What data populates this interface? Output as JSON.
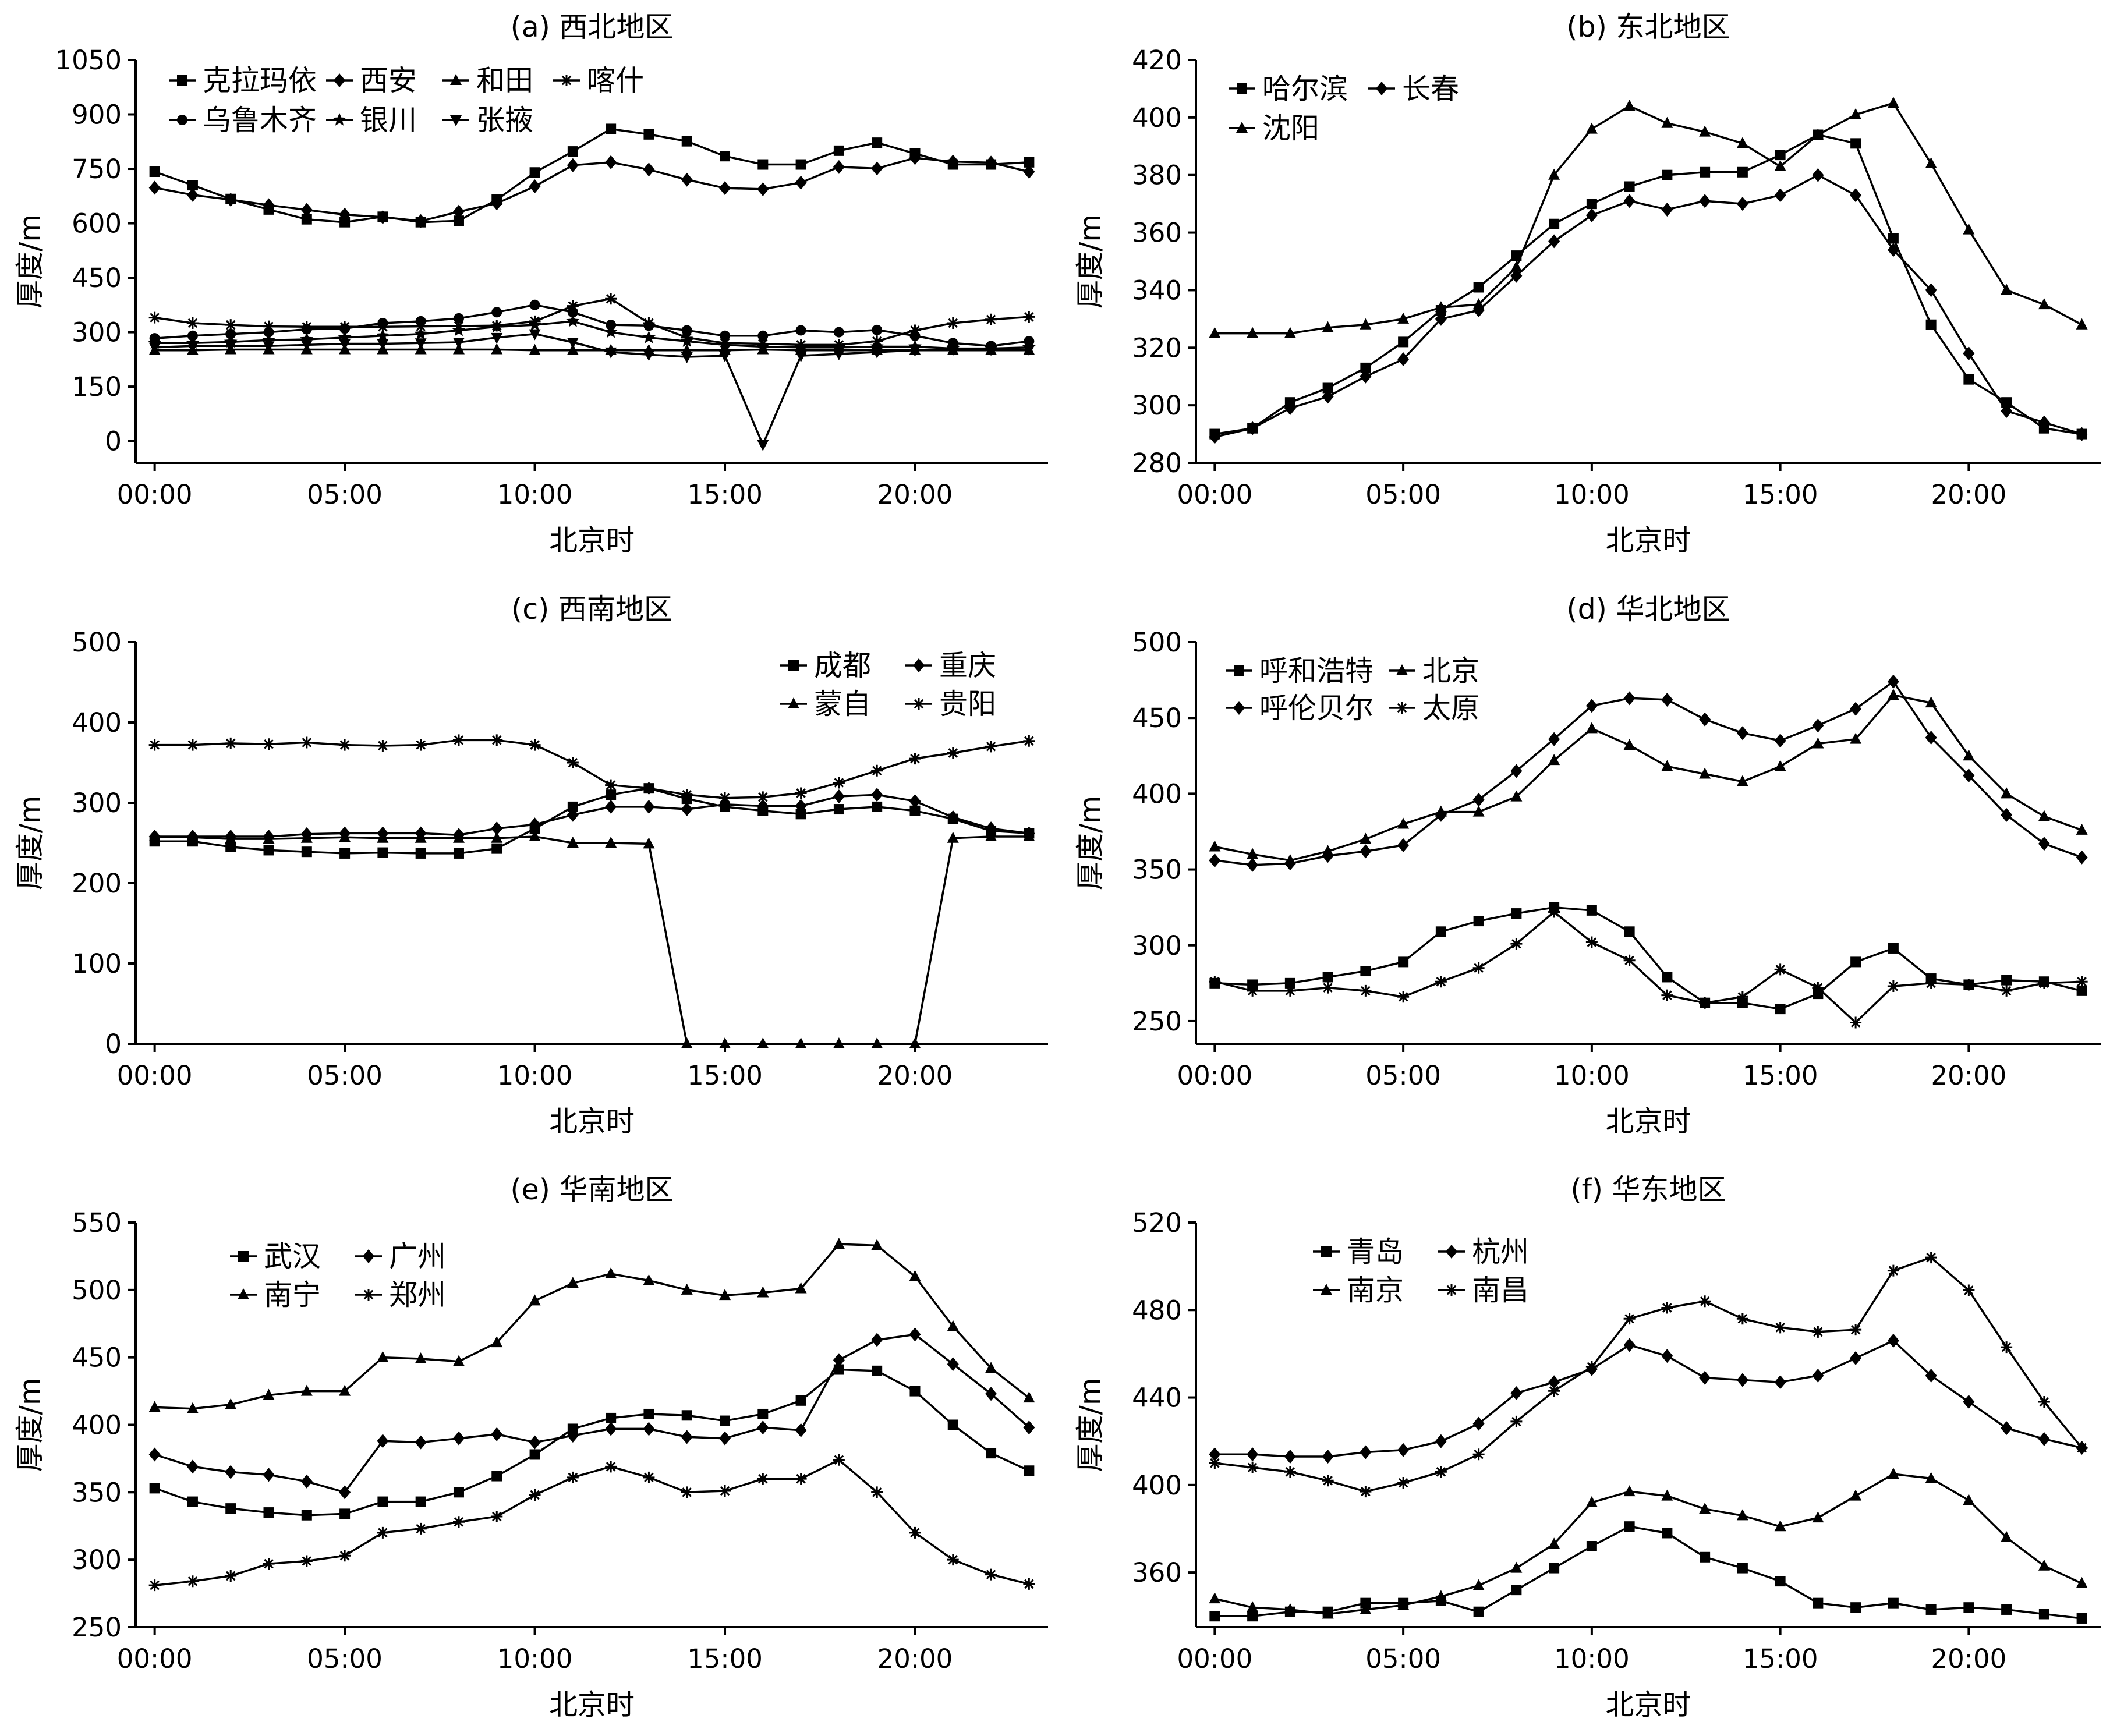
{
  "x_ticks": [
    "00:00",
    "05:00",
    "10:00",
    "15:00",
    "20:00"
  ],
  "x_tick_hours": [
    0,
    5,
    10,
    15,
    20
  ],
  "chart_data": [
    {
      "type": "line",
      "title": "(a) 西北地区",
      "xlabel": "北京时",
      "ylabel": "厚度/m",
      "x": [
        0,
        1,
        2,
        3,
        4,
        5,
        6,
        7,
        8,
        9,
        10,
        11,
        12,
        13,
        14,
        15,
        16,
        17,
        18,
        19,
        20,
        21,
        22,
        23
      ],
      "ylim": [
        -60,
        1050
      ],
      "yticks": [
        0,
        150,
        300,
        450,
        600,
        750,
        900,
        1050
      ],
      "grid": false,
      "legend_position": "top-left",
      "legend_rows": [
        [
          "克拉玛依",
          "西安",
          "和田",
          "喀什"
        ],
        [
          "乌鲁木齐",
          "银川",
          "张掖"
        ]
      ],
      "series": [
        {
          "name": "克拉玛依",
          "marker": "square",
          "values": [
            742,
            705,
            667,
            638,
            611,
            603,
            618,
            603,
            607,
            665,
            740,
            798,
            860,
            845,
            826,
            785,
            762,
            762,
            800,
            822,
            792,
            762,
            762,
            768
          ]
        },
        {
          "name": "西安",
          "marker": "diamond",
          "values": [
            698,
            678,
            665,
            650,
            637,
            624,
            617,
            606,
            632,
            655,
            702,
            760,
            768,
            748,
            720,
            697,
            694,
            712,
            755,
            751,
            780,
            770,
            767,
            742
          ]
        },
        {
          "name": "和田",
          "marker": "triangle",
          "values": [
            250,
            250,
            252,
            252,
            252,
            252,
            252,
            252,
            252,
            252,
            250,
            250,
            250,
            250,
            250,
            250,
            252,
            250,
            250,
            250,
            250,
            250,
            250,
            250
          ]
        },
        {
          "name": "喀什",
          "marker": "star",
          "values": [
            340,
            325,
            320,
            316,
            315,
            315,
            315,
            316,
            317,
            318,
            330,
            372,
            392,
            325,
            285,
            270,
            268,
            265,
            265,
            275,
            305,
            325,
            335,
            342
          ]
        },
        {
          "name": "乌鲁木齐",
          "marker": "circle",
          "values": [
            283,
            290,
            295,
            300,
            308,
            310,
            325,
            330,
            338,
            355,
            375,
            355,
            320,
            318,
            305,
            290,
            290,
            305,
            300,
            306,
            290,
            270,
            262,
            275
          ]
        },
        {
          "name": "银川",
          "marker": "star5",
          "values": [
            270,
            270,
            273,
            278,
            280,
            285,
            290,
            295,
            305,
            315,
            320,
            330,
            300,
            285,
            275,
            265,
            260,
            258,
            258,
            260,
            260,
            255,
            255,
            258
          ]
        },
        {
          "name": "张掖",
          "marker": "triangle-down",
          "values": [
            258,
            262,
            262,
            262,
            265,
            268,
            268,
            270,
            272,
            285,
            295,
            272,
            245,
            238,
            232,
            235,
            -10,
            235,
            240,
            245,
            250,
            252,
            252,
            252
          ]
        }
      ]
    },
    {
      "type": "line",
      "title": "(b) 东北地区",
      "xlabel": "北京时",
      "ylabel": "厚度/m",
      "x": [
        0,
        1,
        2,
        3,
        4,
        5,
        6,
        7,
        8,
        9,
        10,
        11,
        12,
        13,
        14,
        15,
        16,
        17,
        18,
        19,
        20,
        21,
        22,
        23
      ],
      "ylim": [
        280,
        420
      ],
      "yticks": [
        280,
        300,
        320,
        340,
        360,
        380,
        400,
        420
      ],
      "grid": false,
      "legend_position": "top-left",
      "legend_rows": [
        [
          "哈尔滨",
          "长春"
        ],
        [
          "沈阳"
        ]
      ],
      "series": [
        {
          "name": "哈尔滨",
          "marker": "square",
          "values": [
            290,
            292,
            301,
            306,
            313,
            322,
            333,
            341,
            352,
            363,
            370,
            376,
            380,
            381,
            381,
            387,
            394,
            391,
            358,
            328,
            309,
            301,
            292,
            290
          ]
        },
        {
          "name": "长春",
          "marker": "diamond",
          "values": [
            289,
            292,
            299,
            303,
            310,
            316,
            330,
            333,
            345,
            357,
            366,
            371,
            368,
            371,
            370,
            373,
            380,
            373,
            354,
            340,
            318,
            298,
            294,
            290
          ]
        },
        {
          "name": "沈阳",
          "marker": "triangle",
          "values": [
            325,
            325,
            325,
            327,
            328,
            330,
            334,
            335,
            348,
            380,
            396,
            404,
            398,
            395,
            391,
            383,
            394,
            401,
            405,
            384,
            361,
            340,
            335,
            328
          ]
        }
      ]
    },
    {
      "type": "line",
      "title": "(c) 西南地区",
      "xlabel": "北京时",
      "ylabel": "厚度/m",
      "x": [
        0,
        1,
        2,
        3,
        4,
        5,
        6,
        7,
        8,
        9,
        10,
        11,
        12,
        13,
        14,
        15,
        16,
        17,
        18,
        19,
        20,
        21,
        22,
        23
      ],
      "ylim": [
        0,
        500
      ],
      "yticks": [
        0,
        100,
        200,
        300,
        400,
        500
      ],
      "grid": false,
      "legend_position": "top-right",
      "legend_rows": [
        [
          "成都",
          "重庆"
        ],
        [
          "蒙自",
          "贵阳"
        ]
      ],
      "series": [
        {
          "name": "成都",
          "marker": "square",
          "values": [
            252,
            252,
            245,
            241,
            239,
            237,
            238,
            237,
            237,
            243,
            268,
            295,
            310,
            318,
            305,
            295,
            290,
            286,
            292,
            295,
            290,
            280,
            265,
            262
          ]
        },
        {
          "name": "重庆",
          "marker": "diamond",
          "values": [
            258,
            258,
            258,
            258,
            261,
            262,
            262,
            262,
            260,
            268,
            273,
            285,
            295,
            295,
            292,
            298,
            296,
            296,
            308,
            310,
            302,
            282,
            268,
            262
          ]
        },
        {
          "name": "蒙自",
          "marker": "triangle",
          "values": [
            258,
            257,
            255,
            255,
            256,
            257,
            256,
            256,
            256,
            256,
            258,
            250,
            250,
            249,
            0,
            0,
            0,
            0,
            0,
            0,
            0,
            256,
            258,
            258
          ]
        },
        {
          "name": "贵阳",
          "marker": "star",
          "values": [
            372,
            372,
            374,
            373,
            375,
            372,
            371,
            372,
            378,
            378,
            372,
            350,
            322,
            318,
            310,
            306,
            307,
            312,
            325,
            340,
            355,
            362,
            370,
            377
          ]
        }
      ]
    },
    {
      "type": "line",
      "title": "(d) 华北地区",
      "xlabel": "北京时",
      "ylabel": "厚度/m",
      "x": [
        0,
        1,
        2,
        3,
        4,
        5,
        6,
        7,
        8,
        9,
        10,
        11,
        12,
        13,
        14,
        15,
        16,
        17,
        18,
        19,
        20,
        21,
        22,
        23
      ],
      "ylim": [
        235,
        500
      ],
      "yticks": [
        250,
        300,
        350,
        400,
        450,
        500
      ],
      "grid": false,
      "legend_position": "top-left",
      "legend_rows": [
        [
          "呼和浩特",
          "北京"
        ],
        [
          "呼伦贝尔",
          "太原"
        ]
      ],
      "series": [
        {
          "name": "呼和浩特",
          "marker": "square",
          "values": [
            275,
            274,
            275,
            279,
            283,
            289,
            309,
            316,
            321,
            325,
            323,
            309,
            279,
            262,
            262,
            258,
            268,
            289,
            298,
            278,
            274,
            277,
            276,
            270
          ]
        },
        {
          "name": "北京",
          "marker": "triangle",
          "values": [
            365,
            360,
            356,
            362,
            370,
            380,
            388,
            388,
            398,
            422,
            443,
            432,
            418,
            413,
            408,
            418,
            433,
            436,
            465,
            460,
            425,
            400,
            385,
            376
          ]
        },
        {
          "name": "呼伦贝尔",
          "marker": "diamond",
          "values": [
            356,
            353,
            354,
            359,
            362,
            366,
            386,
            396,
            415,
            436,
            458,
            463,
            462,
            449,
            440,
            435,
            445,
            456,
            474,
            437,
            412,
            386,
            367,
            358
          ]
        },
        {
          "name": "太原",
          "marker": "star",
          "values": [
            276,
            270,
            270,
            272,
            270,
            266,
            276,
            285,
            301,
            322,
            302,
            290,
            267,
            262,
            266,
            284,
            272,
            249,
            273,
            275,
            274,
            270,
            275,
            276
          ]
        }
      ]
    },
    {
      "type": "line",
      "title": "(e) 华南地区",
      "xlabel": "北京时",
      "ylabel": "厚度/m",
      "x": [
        0,
        1,
        2,
        3,
        4,
        5,
        6,
        7,
        8,
        9,
        10,
        11,
        12,
        13,
        14,
        15,
        16,
        17,
        18,
        19,
        20,
        21,
        22,
        23
      ],
      "ylim": [
        250,
        550
      ],
      "yticks": [
        250,
        300,
        350,
        400,
        450,
        500,
        550
      ],
      "grid": false,
      "legend_position": "top-left",
      "legend_rows": [
        [
          "武汉",
          "广州"
        ],
        [
          "南宁",
          "郑州"
        ]
      ],
      "series": [
        {
          "name": "武汉",
          "marker": "square",
          "values": [
            353,
            343,
            338,
            335,
            333,
            334,
            343,
            343,
            350,
            362,
            378,
            397,
            405,
            408,
            407,
            403,
            408,
            418,
            441,
            440,
            425,
            400,
            379,
            366
          ]
        },
        {
          "name": "广州",
          "marker": "diamond",
          "values": [
            378,
            369,
            365,
            363,
            358,
            350,
            388,
            387,
            390,
            393,
            387,
            392,
            397,
            397,
            391,
            390,
            398,
            396,
            448,
            463,
            467,
            445,
            423,
            398
          ]
        },
        {
          "name": "南宁",
          "marker": "triangle",
          "values": [
            413,
            412,
            415,
            422,
            425,
            425,
            450,
            449,
            447,
            461,
            492,
            505,
            512,
            507,
            500,
            496,
            498,
            501,
            534,
            533,
            510,
            473,
            442,
            420
          ]
        },
        {
          "name": "郑州",
          "marker": "star",
          "values": [
            281,
            284,
            288,
            297,
            299,
            303,
            320,
            323,
            328,
            332,
            348,
            361,
            369,
            361,
            350,
            351,
            360,
            360,
            374,
            350,
            320,
            300,
            289,
            282
          ]
        }
      ]
    },
    {
      "type": "line",
      "title": "(f) 华东地区",
      "xlabel": "北京时",
      "ylabel": "厚度/m",
      "x": [
        0,
        1,
        2,
        3,
        4,
        5,
        6,
        7,
        8,
        9,
        10,
        11,
        12,
        13,
        14,
        15,
        16,
        17,
        18,
        19,
        20,
        21,
        22,
        23
      ],
      "ylim": [
        335,
        520
      ],
      "yticks": [
        360,
        400,
        440,
        480,
        520
      ],
      "grid": false,
      "legend_position": "top-left",
      "legend_rows": [
        [
          "青岛",
          "杭州"
        ],
        [
          "南京",
          "南昌"
        ]
      ],
      "series": [
        {
          "name": "青岛",
          "marker": "square",
          "values": [
            340,
            340,
            342,
            342,
            346,
            346,
            347,
            342,
            352,
            362,
            372,
            381,
            378,
            367,
            362,
            356,
            346,
            344,
            346,
            343,
            344,
            343,
            341,
            339
          ]
        },
        {
          "name": "杭州",
          "marker": "diamond",
          "values": [
            414,
            414,
            413,
            413,
            415,
            416,
            420,
            428,
            442,
            447,
            453,
            464,
            459,
            449,
            448,
            447,
            450,
            458,
            466,
            450,
            438,
            426,
            421,
            417
          ]
        },
        {
          "name": "南京",
          "marker": "triangle",
          "values": [
            348,
            344,
            343,
            341,
            343,
            345,
            349,
            354,
            362,
            373,
            392,
            397,
            395,
            389,
            386,
            381,
            385,
            395,
            405,
            403,
            393,
            376,
            363,
            355
          ]
        },
        {
          "name": "南昌",
          "marker": "star",
          "values": [
            410,
            408,
            406,
            402,
            397,
            401,
            406,
            414,
            429,
            443,
            454,
            476,
            481,
            484,
            476,
            472,
            470,
            471,
            498,
            504,
            489,
            463,
            438,
            417
          ]
        }
      ]
    }
  ]
}
